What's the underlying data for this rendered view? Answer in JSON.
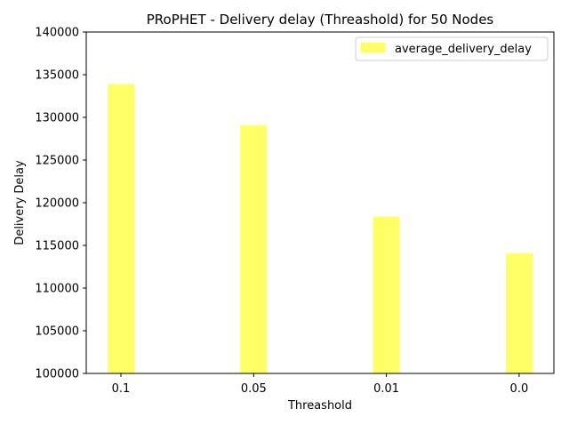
{
  "chart_data": {
    "type": "bar",
    "title": "PRoPHET - Delivery delay (Threashold) for 50 Nodes",
    "xlabel": "Threashold",
    "ylabel": "Delivery Delay",
    "categories": [
      "0.1",
      "0.05",
      "0.01",
      "0.0"
    ],
    "series": [
      {
        "name": "average_delivery_delay",
        "values": [
          133900,
          129100,
          118400,
          114100
        ],
        "color": "#ffff66"
      }
    ],
    "ylim": [
      100000,
      140000
    ],
    "yticks": [
      100000,
      105000,
      110000,
      115000,
      120000,
      125000,
      130000,
      135000,
      140000
    ],
    "legend_position": "top-right",
    "grid": false
  }
}
